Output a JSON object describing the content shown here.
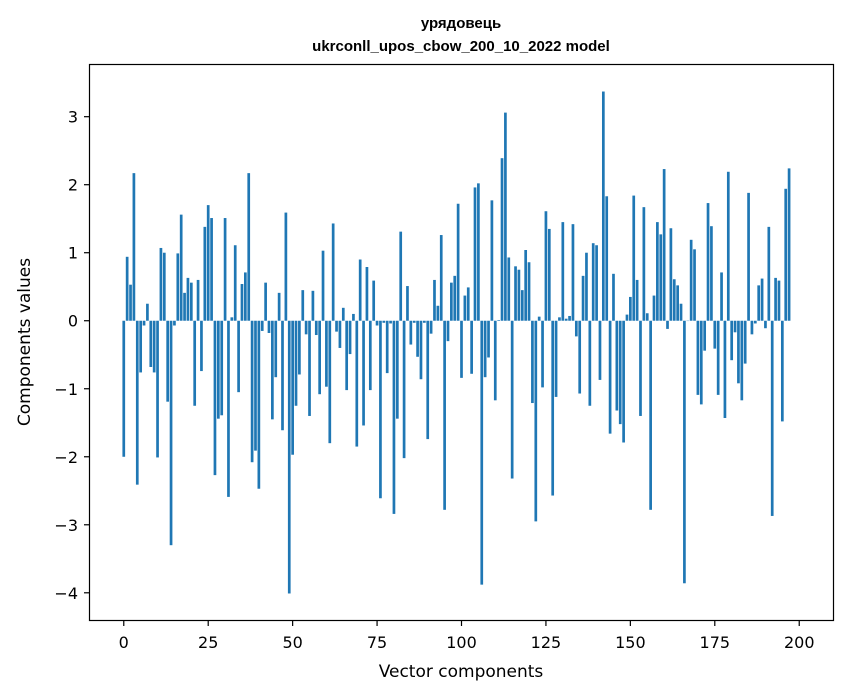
{
  "chart_data": {
    "type": "bar",
    "title": "урядовець",
    "subtitle": "ukrconll_upos_cbow_200_10_2022 model",
    "xlabel": "Vector components",
    "ylabel": "Components values",
    "xlim": [
      -10,
      210
    ],
    "ylim": [
      -4.4,
      3.76
    ],
    "xticks": [
      0,
      25,
      50,
      75,
      100,
      125,
      150,
      175,
      200
    ],
    "yticks": [
      -4,
      -3,
      -2,
      -1,
      0,
      1,
      2,
      3
    ],
    "xtick_labels": [
      "0",
      "25",
      "50",
      "75",
      "100",
      "125",
      "150",
      "175",
      "200"
    ],
    "ytick_labels": [
      "−4",
      "−3",
      "−2",
      "−1",
      "0",
      "1",
      "2",
      "3"
    ],
    "bar_color": "#1f77b4",
    "grid": false,
    "values": [
      -2.0,
      0.94,
      0.53,
      2.17,
      -2.41,
      -0.76,
      -0.07,
      0.25,
      -0.68,
      -0.76,
      -2.01,
      1.07,
      1.0,
      -1.19,
      -3.3,
      -0.07,
      0.99,
      1.56,
      0.41,
      0.63,
      0.56,
      -1.25,
      0.6,
      -0.74,
      1.38,
      1.7,
      1.51,
      -2.27,
      -1.44,
      -1.39,
      1.51,
      -2.59,
      0.05,
      1.11,
      -1.05,
      0.54,
      0.71,
      2.17,
      -2.08,
      -1.91,
      -2.47,
      -0.15,
      0.56,
      -0.18,
      -1.45,
      -0.83,
      0.41,
      -1.61,
      1.59,
      -4.01,
      -1.97,
      -1.25,
      -0.79,
      0.45,
      -0.2,
      -1.4,
      0.44,
      -0.21,
      -1.08,
      1.03,
      -0.97,
      -1.8,
      1.43,
      -0.16,
      -0.4,
      0.19,
      -1.02,
      -0.49,
      0.1,
      -1.85,
      0.9,
      -1.54,
      0.79,
      -1.02,
      0.59,
      -0.07,
      -2.61,
      -0.03,
      -0.77,
      -0.04,
      -2.84,
      -1.44,
      1.31,
      -2.02,
      0.51,
      -0.35,
      -0.03,
      -0.53,
      -0.86,
      -0.03,
      -1.74,
      -0.19,
      0.6,
      0.22,
      1.26,
      -2.78,
      -0.3,
      0.56,
      0.66,
      1.72,
      -0.84,
      0.37,
      0.49,
      -0.78,
      1.96,
      2.02,
      -3.88,
      -0.83,
      -0.54,
      1.77,
      -1.17,
      0.01,
      2.39,
      3.06,
      0.93,
      -2.32,
      0.8,
      0.75,
      0.45,
      1.04,
      0.86,
      -1.21,
      -2.95,
      0.06,
      -0.98,
      1.61,
      1.35,
      -2.57,
      -1.12,
      0.05,
      1.45,
      0.03,
      0.07,
      1.42,
      -0.23,
      -1.07,
      0.66,
      1.0,
      -1.25,
      1.14,
      1.11,
      -0.87,
      3.37,
      1.83,
      -1.66,
      0.69,
      -1.32,
      -1.52,
      -1.79,
      0.09,
      0.35,
      1.84,
      0.6,
      -1.4,
      1.67,
      0.11,
      -2.78,
      0.37,
      1.45,
      1.27,
      2.23,
      -0.12,
      1.36,
      0.61,
      0.52,
      0.25,
      -3.86,
      0.0,
      1.19,
      1.05,
      -1.09,
      -1.23,
      -0.44,
      1.73,
      1.39,
      -0.41,
      -1.09,
      0.71,
      -1.43,
      2.19,
      -0.58,
      -0.17,
      -0.92,
      -1.17,
      -0.63,
      1.88,
      -0.2,
      -0.04,
      0.52,
      0.62,
      -0.11,
      1.38,
      -2.87,
      0.63,
      0.59,
      -1.48,
      1.94,
      2.24
    ]
  }
}
